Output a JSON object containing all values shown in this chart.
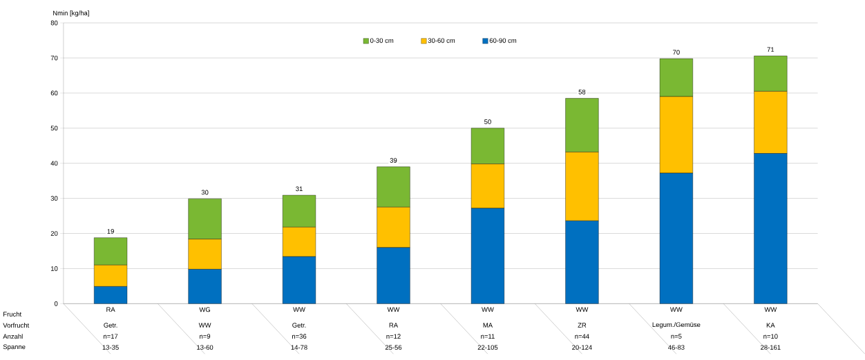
{
  "chart_data": {
    "type": "bar",
    "stacked": true,
    "ylabel": "Nmin [kg/ha]",
    "categories": [
      "RA",
      "WG",
      "WW",
      "WW",
      "WW",
      "WW",
      "WW",
      "WW"
    ],
    "series": [
      {
        "name": "60-90 cm",
        "color": "#0070c0",
        "values": [
          4.9,
          9.8,
          13.4,
          16,
          27.2,
          23.6,
          37.2,
          42.8
        ]
      },
      {
        "name": "30-60 cm",
        "color": "#ffc000",
        "values": [
          6.1,
          8.6,
          8.4,
          11.5,
          12.6,
          19.6,
          21.8,
          17.7
        ]
      },
      {
        "name": "0-30 cm",
        "color": "#7ab833",
        "values": [
          7.8,
          11.5,
          9.1,
          11.5,
          10.2,
          15.3,
          10.8,
          10.1
        ]
      }
    ],
    "totals": [
      "19",
      "30",
      "31",
      "39",
      "50",
      "58",
      "70",
      "71"
    ],
    "ylim": [
      0,
      80
    ],
    "yticks": [
      0,
      10,
      20,
      30,
      40,
      50,
      60,
      70,
      80
    ],
    "grid": "y",
    "legend": "top",
    "annotations": [
      "Frucht",
      "Vorfrucht",
      "Anzahl",
      "Spanne",
      "Getr.",
      "WW",
      "Getr.",
      "RA",
      "MA",
      "ZR",
      "Legum./Gemüse",
      "KA",
      "n=17",
      "n=9",
      "n=36",
      "n=12",
      "n=11",
      "n=44",
      "n=5",
      "n=10",
      "13-35",
      "13-60",
      "14-78",
      "25-56",
      "22-105",
      "20-124",
      "46-83",
      "28-161"
    ]
  }
}
